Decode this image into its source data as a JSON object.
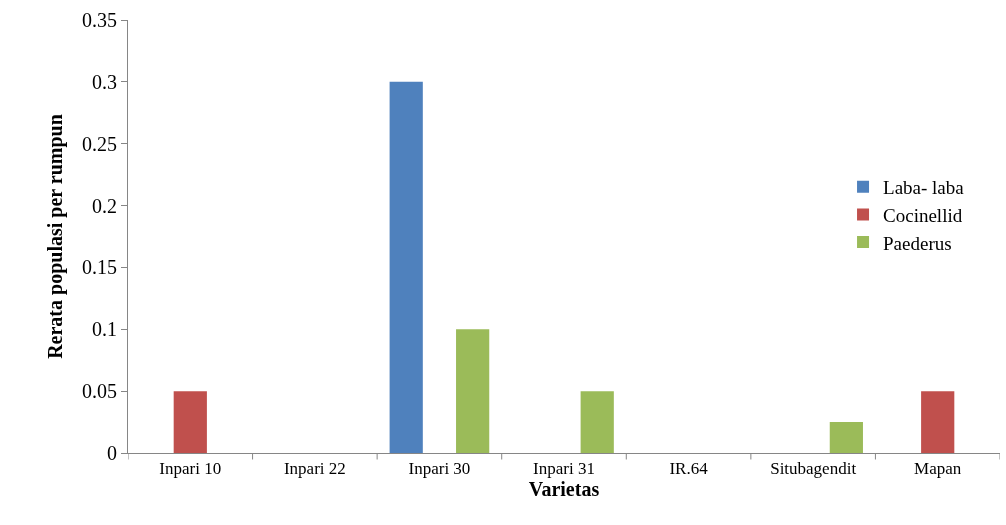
{
  "chart_data": {
    "type": "bar",
    "xlabel": "Varietas",
    "ylabel": "Rerata populasi per rumpun",
    "categories": [
      "Inpari 10",
      "Inpari 22",
      "Inpari 30",
      "Inpari 31",
      "IR.64",
      "Situbagendit",
      "Mapan"
    ],
    "series": [
      {
        "name": "Laba- laba",
        "color": "#4f81bd",
        "values": [
          0,
          0,
          0.3,
          0,
          0,
          0,
          0
        ]
      },
      {
        "name": "Cocinellid",
        "color": "#c0504d",
        "values": [
          0.05,
          0,
          0,
          0,
          0,
          0,
          0.05
        ]
      },
      {
        "name": "Paederus",
        "color": "#9bbb59",
        "values": [
          0,
          0,
          0.1,
          0.05,
          0,
          0.025,
          0
        ]
      }
    ],
    "ylim": [
      0,
      0.35
    ],
    "yticks": [
      0,
      0.05,
      0.1,
      0.15,
      0.2,
      0.25,
      0.3,
      0.35
    ],
    "grid": false,
    "legend": "right"
  }
}
